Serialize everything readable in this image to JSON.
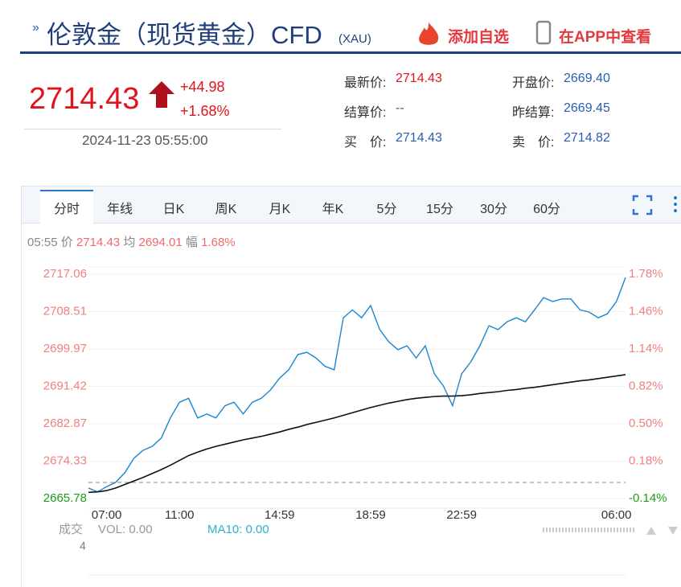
{
  "header": {
    "title": "伦敦金（现货黄金）CFD",
    "symbol": "(XAU)",
    "add_watch": "添加自选",
    "open_app": "在APP中查看"
  },
  "quote": {
    "price": "2714.43",
    "change": "+44.98",
    "change_pct": "+1.68%",
    "datetime": "2024-11-23 05:55:00",
    "fields": [
      {
        "label": "最新价:",
        "value": "2714.43"
      },
      {
        "label": "开盘价:",
        "value": "2669.40"
      },
      {
        "label": "结算价:",
        "value": "--"
      },
      {
        "label": "昨结算:",
        "value": "2669.45"
      },
      {
        "label": "买　价:",
        "value": "2714.43"
      },
      {
        "label": "卖　价:",
        "value": "2714.82"
      }
    ]
  },
  "tabs": [
    "分时",
    "年线",
    "日K",
    "周K",
    "月K",
    "年K",
    "5分",
    "15分",
    "30分",
    "60分"
  ],
  "info": {
    "time": "05:55",
    "price_label": "价",
    "price": "2714.43",
    "avg_label": "均",
    "avg": "2694.01",
    "amp_label": "幅",
    "amp": "1.68%"
  },
  "volume": {
    "label": "成交",
    "vol": "VOL: 0.00",
    "ma10": "MA10: 0.00",
    "axis": "4"
  },
  "chart_data": {
    "type": "line",
    "categories": [
      null,
      null,
      "07:00",
      null,
      null,
      null,
      null,
      null,
      null,
      null,
      "11:00",
      null,
      null,
      null,
      null,
      null,
      null,
      null,
      null,
      null,
      null,
      "14:59",
      null,
      null,
      null,
      null,
      null,
      null,
      null,
      null,
      null,
      "18:59",
      null,
      null,
      null,
      null,
      null,
      null,
      null,
      null,
      null,
      "22:59",
      null,
      null,
      null,
      null,
      null,
      null,
      null,
      null,
      null,
      null,
      null,
      null,
      null,
      null,
      null,
      null,
      "06:00",
      null
    ],
    "series": [
      {
        "color": "#1b86d0",
        "values": [
          2668.2,
          2667.3,
          2668.5,
          2669.5,
          2671.7,
          2675.0,
          2676.8,
          2677.7,
          2679.6,
          2684.2,
          2687.8,
          2688.7,
          2684.2,
          2685.1,
          2684.2,
          2687.0,
          2687.8,
          2685.1,
          2687.8,
          2688.7,
          2690.6,
          2693.3,
          2695.2,
          2698.7,
          2699.2,
          2697.9,
          2696.0,
          2695.2,
          2707.1,
          2708.9,
          2707.1,
          2709.9,
          2704.4,
          2701.6,
          2699.8,
          2700.7,
          2697.9,
          2700.7,
          2694.3,
          2691.5,
          2687.0,
          2694.3,
          2697.0,
          2700.7,
          2705.3,
          2704.4,
          2706.2,
          2707.1,
          2706.2,
          2708.9,
          2711.7,
          2710.8,
          2711.4,
          2711.4,
          2708.9,
          2708.4,
          2707.1,
          2708.0,
          2710.8,
          2716.3
        ]
      },
      {
        "color": "#111111",
        "values": [
          2667.2,
          2667.3,
          2667.6,
          2668.2,
          2669.0,
          2669.8,
          2670.6,
          2671.5,
          2672.4,
          2673.4,
          2674.5,
          2675.6,
          2676.4,
          2677.1,
          2677.7,
          2678.2,
          2678.7,
          2679.2,
          2679.6,
          2680.0,
          2680.5,
          2681.0,
          2681.6,
          2682.1,
          2682.7,
          2683.2,
          2683.7,
          2684.2,
          2684.8,
          2685.4,
          2686.0,
          2686.6,
          2687.1,
          2687.6,
          2688.0,
          2688.4,
          2688.7,
          2688.9,
          2689.1,
          2689.2,
          2689.2,
          2689.3,
          2689.5,
          2689.8,
          2690.0,
          2690.2,
          2690.5,
          2690.7,
          2691.0,
          2691.2,
          2691.5,
          2691.8,
          2692.1,
          2692.4,
          2692.7,
          2692.9,
          2693.2,
          2693.5,
          2693.8,
          2694.1
        ]
      }
    ],
    "baseline": 2669.45,
    "ylim": [
      2665.78,
      2717.06
    ],
    "yticks": [
      2717.06,
      2708.51,
      2699.97,
      2691.42,
      2682.87,
      2674.33,
      2665.78
    ],
    "y2lim": [
      -0.14,
      1.78
    ],
    "y2ticks": [
      {
        "value": 1.78,
        "label": "1.78%"
      },
      {
        "value": 1.46,
        "label": "1.46%"
      },
      {
        "value": 1.14,
        "label": "1.14%"
      },
      {
        "value": 0.82,
        "label": "0.82%"
      },
      {
        "value": 0.5,
        "label": "0.50%"
      },
      {
        "value": 0.18,
        "label": "0.18%"
      },
      {
        "value": -0.14,
        "label": "-0.14%"
      }
    ],
    "up_color": "#f08080",
    "down_color": "#1a9e1a",
    "grid": true
  }
}
